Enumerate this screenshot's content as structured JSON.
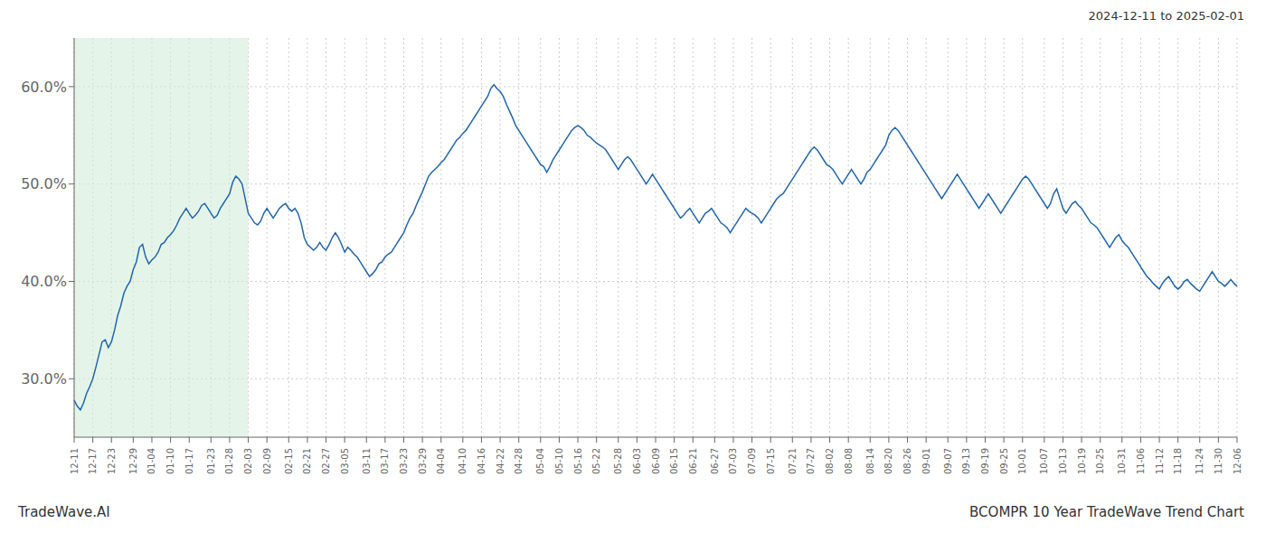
{
  "chart_data": {
    "type": "line",
    "title": "BCOMPR 10 Year TradeWave Trend Chart",
    "subtitle": "2024-12-11 to 2025-02-01",
    "annotations": [
      "TradeWave.AI"
    ],
    "color": "#2166ac",
    "grid": true,
    "ylim": [
      24.0,
      65.0
    ],
    "yticks": [
      {
        "value": 30.0,
        "label": "30.0%"
      },
      {
        "value": 40.0,
        "label": "40.0%"
      },
      {
        "value": 50.0,
        "label": "50.0%"
      },
      {
        "value": 60.0,
        "label": "60.0%"
      }
    ],
    "highlight": {
      "from": "12-11",
      "to": "02-03",
      "color": "#d4edda"
    },
    "categories": [
      "12-11",
      null,
      null,
      null,
      null,
      null,
      "12-17",
      null,
      null,
      null,
      null,
      null,
      "12-23",
      null,
      null,
      null,
      null,
      null,
      null,
      "12-29",
      null,
      null,
      null,
      null,
      null,
      "01-04",
      null,
      null,
      null,
      null,
      null,
      "01-10",
      null,
      null,
      null,
      null,
      null,
      "01-17",
      null,
      null,
      null,
      null,
      null,
      null,
      "01-23",
      null,
      null,
      null,
      null,
      null,
      "01-28",
      null,
      null,
      null,
      null,
      null,
      "02-03",
      null,
      null,
      null,
      null,
      null,
      "02-09",
      null,
      null,
      null,
      null,
      null,
      null,
      "02-15",
      null,
      null,
      null,
      null,
      null,
      "02-21",
      null,
      null,
      null,
      null,
      null,
      "02-27",
      null,
      null,
      null,
      null,
      null,
      "03-05",
      null,
      null,
      null,
      null,
      null,
      null,
      "03-11",
      null,
      null,
      null,
      null,
      null,
      "03-17",
      null,
      null,
      null,
      null,
      null,
      "03-23",
      null,
      null,
      null,
      null,
      null,
      "03-29",
      null,
      null,
      null,
      null,
      null,
      "04-04",
      null,
      null,
      null,
      null,
      null,
      null,
      "04-10",
      null,
      null,
      null,
      null,
      null,
      "04-16",
      null,
      null,
      null,
      null,
      null,
      "04-22",
      null,
      null,
      null,
      null,
      null,
      "04-28",
      null,
      null,
      null,
      null,
      null,
      null,
      "05-04",
      null,
      null,
      null,
      null,
      null,
      "05-10",
      null,
      null,
      null,
      null,
      null,
      "05-16",
      null,
      null,
      null,
      null,
      null,
      "05-22",
      null,
      null,
      null,
      null,
      null,
      null,
      "05-28",
      null,
      null,
      null,
      null,
      null,
      "06-03",
      null,
      null,
      null,
      null,
      null,
      "06-09",
      null,
      null,
      null,
      null,
      null,
      "06-15",
      null,
      null,
      null,
      null,
      null,
      "06-21",
      null,
      null,
      null,
      null,
      null,
      null,
      "06-27",
      null,
      null,
      null,
      null,
      null,
      "07-03",
      null,
      null,
      null,
      null,
      null,
      "07-09",
      null,
      null,
      null,
      null,
      null,
      "07-15",
      null,
      null,
      null,
      null,
      null,
      null,
      "07-21",
      null,
      null,
      null,
      null,
      null,
      "07-27",
      null,
      null,
      null,
      null,
      null,
      "08-02",
      null,
      null,
      null,
      null,
      null,
      "08-08",
      null,
      null,
      null,
      null,
      null,
      null,
      "08-14",
      null,
      null,
      null,
      null,
      null,
      "08-20",
      null,
      null,
      null,
      null,
      null,
      "08-26",
      null,
      null,
      null,
      null,
      null,
      "09-01",
      null,
      null,
      null,
      null,
      null,
      null,
      "09-07",
      null,
      null,
      null,
      null,
      null,
      "09-13",
      null,
      null,
      null,
      null,
      null,
      "09-19",
      null,
      null,
      null,
      null,
      null,
      "09-25",
      null,
      null,
      null,
      null,
      null,
      "10-01",
      null,
      null,
      null,
      null,
      null,
      null,
      "10-07",
      null,
      null,
      null,
      null,
      null,
      "10-13",
      null,
      null,
      null,
      null,
      null,
      "10-19",
      null,
      null,
      null,
      null,
      null,
      "10-25",
      null,
      null,
      null,
      null,
      null,
      null,
      "10-31",
      null,
      null,
      null,
      null,
      null,
      "11-06",
      null,
      null,
      null,
      null,
      null,
      "11-12",
      null,
      null,
      null,
      null,
      null,
      "11-18",
      null,
      null,
      null,
      null,
      null,
      null,
      "11-24",
      null,
      null,
      null,
      null,
      null,
      "11-30",
      null,
      null,
      null,
      null,
      null,
      "12-06"
    ],
    "values": [
      27.8,
      27.2,
      26.8,
      27.5,
      28.5,
      29.2,
      30.0,
      31.2,
      32.5,
      33.8,
      34.0,
      33.2,
      33.8,
      35.0,
      36.5,
      37.5,
      38.8,
      39.5,
      40.0,
      41.2,
      42.0,
      43.5,
      43.8,
      42.5,
      41.8,
      42.2,
      42.5,
      43.0,
      43.8,
      44.0,
      44.5,
      44.8,
      45.2,
      45.8,
      46.5,
      47.0,
      47.5,
      47.0,
      46.5,
      46.8,
      47.2,
      47.8,
      48.0,
      47.5,
      47.0,
      46.5,
      46.8,
      47.5,
      48.0,
      48.5,
      49.0,
      50.2,
      50.8,
      50.5,
      50.0,
      48.5,
      47.0,
      46.5,
      46.0,
      45.8,
      46.2,
      47.0,
      47.5,
      47.0,
      46.5,
      47.0,
      47.5,
      47.8,
      48.0,
      47.5,
      47.2,
      47.5,
      47.0,
      46.0,
      44.5,
      43.8,
      43.5,
      43.2,
      43.5,
      44.0,
      43.5,
      43.2,
      43.8,
      44.5,
      45.0,
      44.5,
      43.8,
      43.0,
      43.5,
      43.2,
      42.8,
      42.5,
      42.0,
      41.5,
      41.0,
      40.5,
      40.8,
      41.2,
      41.8,
      42.0,
      42.5,
      42.8,
      43.0,
      43.5,
      44.0,
      44.5,
      45.0,
      45.8,
      46.5,
      47.0,
      47.8,
      48.5,
      49.2,
      50.0,
      50.8,
      51.2,
      51.5,
      51.8,
      52.2,
      52.5,
      53.0,
      53.5,
      54.0,
      54.5,
      54.8,
      55.2,
      55.5,
      56.0,
      56.5,
      57.0,
      57.5,
      58.0,
      58.5,
      59.0,
      59.8,
      60.2,
      59.8,
      59.5,
      59.0,
      58.2,
      57.5,
      56.8,
      56.0,
      55.5,
      55.0,
      54.5,
      54.0,
      53.5,
      53.0,
      52.5,
      52.0,
      51.8,
      51.2,
      51.8,
      52.5,
      53.0,
      53.5,
      54.0,
      54.5,
      55.0,
      55.5,
      55.8,
      56.0,
      55.8,
      55.5,
      55.0,
      54.8,
      54.5,
      54.2,
      54.0,
      53.8,
      53.5,
      53.0,
      52.5,
      52.0,
      51.5,
      52.0,
      52.5,
      52.8,
      52.5,
      52.0,
      51.5,
      51.0,
      50.5,
      50.0,
      50.5,
      51.0,
      50.5,
      50.0,
      49.5,
      49.0,
      48.5,
      48.0,
      47.5,
      47.0,
      46.5,
      46.8,
      47.2,
      47.5,
      47.0,
      46.5,
      46.0,
      46.5,
      47.0,
      47.2,
      47.5,
      47.0,
      46.5,
      46.0,
      45.8,
      45.5,
      45.0,
      45.5,
      46.0,
      46.5,
      47.0,
      47.5,
      47.2,
      47.0,
      46.8,
      46.5,
      46.0,
      46.5,
      47.0,
      47.5,
      48.0,
      48.5,
      48.8,
      49.0,
      49.5,
      50.0,
      50.5,
      51.0,
      51.5,
      52.0,
      52.5,
      53.0,
      53.5,
      53.8,
      53.5,
      53.0,
      52.5,
      52.0,
      51.8,
      51.5,
      51.0,
      50.5,
      50.0,
      50.5,
      51.0,
      51.5,
      51.0,
      50.5,
      50.0,
      50.5,
      51.2,
      51.5,
      52.0,
      52.5,
      53.0,
      53.5,
      54.0,
      55.0,
      55.5,
      55.8,
      55.5,
      55.0,
      54.5,
      54.0,
      53.5,
      53.0,
      52.5,
      52.0,
      51.5,
      51.0,
      50.5,
      50.0,
      49.5,
      49.0,
      48.5,
      49.0,
      49.5,
      50.0,
      50.5,
      51.0,
      50.5,
      50.0,
      49.5,
      49.0,
      48.5,
      48.0,
      47.5,
      48.0,
      48.5,
      49.0,
      48.5,
      48.0,
      47.5,
      47.0,
      47.5,
      48.0,
      48.5,
      49.0,
      49.5,
      50.0,
      50.5,
      50.8,
      50.5,
      50.0,
      49.5,
      49.0,
      48.5,
      48.0,
      47.5,
      48.0,
      49.0,
      49.5,
      48.5,
      47.5,
      47.0,
      47.5,
      48.0,
      48.2,
      47.8,
      47.5,
      47.0,
      46.5,
      46.0,
      45.8,
      45.5,
      45.0,
      44.5,
      44.0,
      43.5,
      44.0,
      44.5,
      44.8,
      44.2,
      43.8,
      43.5,
      43.0,
      42.5,
      42.0,
      41.5,
      41.0,
      40.5,
      40.2,
      39.8,
      39.5,
      39.2,
      39.8,
      40.2,
      40.5,
      40.0,
      39.5,
      39.2,
      39.5,
      40.0,
      40.2,
      39.8,
      39.5,
      39.2,
      39.0,
      39.5,
      40.0,
      40.5,
      41.0,
      40.5,
      40.0,
      39.8,
      39.5,
      39.8,
      40.2,
      39.8,
      39.5
    ]
  }
}
